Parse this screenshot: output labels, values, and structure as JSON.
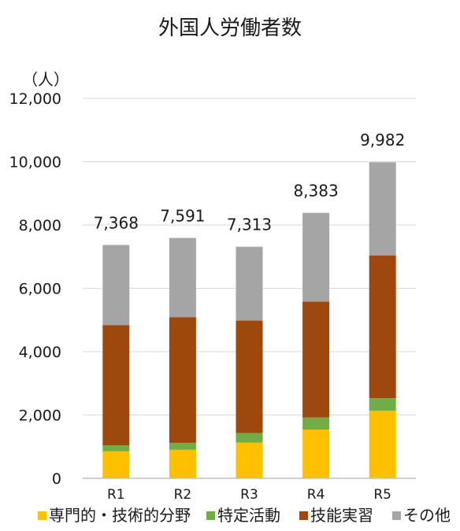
{
  "chart_data": {
    "type": "bar",
    "stacked": true,
    "title": "外国人労働者数",
    "ylabel": "（人）",
    "xlabel": "",
    "ylim": [
      0,
      12000
    ],
    "yticks": [
      0,
      2000,
      4000,
      6000,
      8000,
      10000,
      12000
    ],
    "ytick_labels": [
      "0",
      "2,000",
      "4,000",
      "6,000",
      "8,000",
      "10,000",
      "12,000"
    ],
    "categories": [
      "R1",
      "R2",
      "R3",
      "R4",
      "R5"
    ],
    "series": [
      {
        "name": "専門的・技術的分野",
        "color": "#ffc000",
        "values": [
          850,
          900,
          1130,
          1540,
          2130
        ]
      },
      {
        "name": "特定活動",
        "color": "#70ad47",
        "values": [
          190,
          220,
          300,
          380,
          400
        ]
      },
      {
        "name": "技能実習",
        "color": "#9e480e",
        "values": [
          3800,
          3970,
          3550,
          3660,
          4510
        ]
      },
      {
        "name": "その他",
        "color": "#a5a5a5",
        "values": [
          2528,
          2501,
          2333,
          2803,
          2942
        ]
      }
    ],
    "totals": [
      7368,
      7591,
      7313,
      8383,
      9982
    ],
    "total_labels": [
      "7,368",
      "7,591",
      "7,313",
      "8,383",
      "9,982"
    ],
    "grid": true,
    "legend_position": "bottom"
  }
}
